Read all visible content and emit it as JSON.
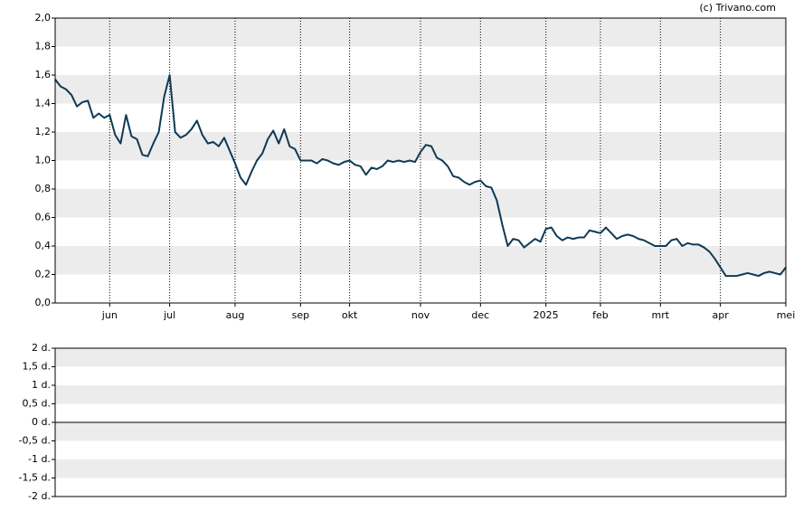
{
  "credit": "(c) Trivano.com",
  "chart_data": [
    {
      "type": "line",
      "categories": [
        null,
        null,
        null,
        null,
        null,
        null,
        null,
        null,
        null,
        null,
        "jun",
        null,
        null,
        null,
        null,
        null,
        null,
        null,
        null,
        null,
        null,
        "jul",
        null,
        null,
        null,
        null,
        null,
        null,
        null,
        null,
        null,
        null,
        null,
        "aug",
        null,
        null,
        null,
        null,
        null,
        null,
        null,
        null,
        null,
        null,
        null,
        "sep",
        null,
        null,
        null,
        null,
        null,
        null,
        null,
        null,
        "okt",
        null,
        null,
        null,
        null,
        null,
        null,
        null,
        null,
        null,
        null,
        null,
        null,
        "nov",
        null,
        null,
        null,
        null,
        null,
        null,
        null,
        null,
        null,
        null,
        "dec",
        null,
        null,
        null,
        null,
        null,
        null,
        null,
        null,
        null,
        null,
        null,
        "2025",
        null,
        null,
        null,
        null,
        null,
        null,
        null,
        null,
        null,
        "feb",
        null,
        null,
        null,
        null,
        null,
        null,
        null,
        null,
        null,
        null,
        "mrt",
        null,
        null,
        null,
        null,
        null,
        null,
        null,
        null,
        null,
        null,
        "apr",
        null,
        null,
        null,
        null,
        null,
        null,
        null,
        null,
        null,
        null,
        null,
        "mei"
      ],
      "series": [
        {
          "color": "#0e3a55",
          "values": [
            1.57,
            1.52,
            1.5,
            1.46,
            1.38,
            1.41,
            1.42,
            1.3,
            1.33,
            1.3,
            1.32,
            1.18,
            1.12,
            1.32,
            1.17,
            1.15,
            1.04,
            1.03,
            1.12,
            1.2,
            1.45,
            1.6,
            1.2,
            1.16,
            1.18,
            1.22,
            1.28,
            1.18,
            1.12,
            1.13,
            1.1,
            1.16,
            1.07,
            0.98,
            0.88,
            0.83,
            0.92,
            1.0,
            1.05,
            1.15,
            1.21,
            1.12,
            1.22,
            1.1,
            1.08,
            1.0,
            1.0,
            1.0,
            0.98,
            1.01,
            1.0,
            0.98,
            0.97,
            0.99,
            1.0,
            0.97,
            0.96,
            0.9,
            0.95,
            0.94,
            0.96,
            1.0,
            0.99,
            1.0,
            0.99,
            1.0,
            0.99,
            1.06,
            1.11,
            1.1,
            1.02,
            1.0,
            0.96,
            0.89,
            0.88,
            0.85,
            0.83,
            0.85,
            0.86,
            0.82,
            0.81,
            0.72,
            0.55,
            0.4,
            0.45,
            0.44,
            0.39,
            0.42,
            0.45,
            0.43,
            0.52,
            0.53,
            0.47,
            0.44,
            0.46,
            0.45,
            0.46,
            0.46,
            0.51,
            0.5,
            0.49,
            0.53,
            0.49,
            0.45,
            0.47,
            0.48,
            0.47,
            0.45,
            0.44,
            0.42,
            0.4,
            0.4,
            0.4,
            0.44,
            0.45,
            0.4,
            0.42,
            0.41,
            0.41,
            0.39,
            0.36,
            0.31,
            0.25,
            0.19,
            0.19,
            0.19,
            0.2,
            0.21,
            0.2,
            0.19,
            0.21,
            0.22,
            0.21,
            0.2,
            0.25
          ]
        }
      ],
      "ylim": [
        0,
        2
      ],
      "yticks": [
        {
          "value": 0,
          "label": "0,0"
        },
        {
          "value": 0.2,
          "label": "0,2"
        },
        {
          "value": 0.4,
          "label": "0,4"
        },
        {
          "value": 0.6,
          "label": "0,6"
        },
        {
          "value": 0.8,
          "label": "0,8"
        },
        {
          "value": 1,
          "label": "1,0"
        },
        {
          "value": 1.2,
          "label": "1,2"
        },
        {
          "value": 1.4,
          "label": "1,4"
        },
        {
          "value": 1.6,
          "label": "1,6"
        },
        {
          "value": 1.8,
          "label": "1,8"
        },
        {
          "value": 2,
          "label": "2,0"
        }
      ],
      "grid": true
    },
    {
      "type": "line",
      "ylim": [
        -2,
        2
      ],
      "yticks": [
        {
          "value": -2,
          "label": "-2 d."
        },
        {
          "value": -1.5,
          "label": "-1,5 d."
        },
        {
          "value": -1,
          "label": "-1 d."
        },
        {
          "value": -0.5,
          "label": "-0,5 d."
        },
        {
          "value": 0,
          "label": "0 d."
        },
        {
          "value": 0.5,
          "label": "0,5 d."
        },
        {
          "value": 1,
          "label": "1 d."
        },
        {
          "value": 1.5,
          "label": "1,5 d."
        },
        {
          "value": 2,
          "label": "2 d."
        }
      ],
      "grid": true
    }
  ]
}
